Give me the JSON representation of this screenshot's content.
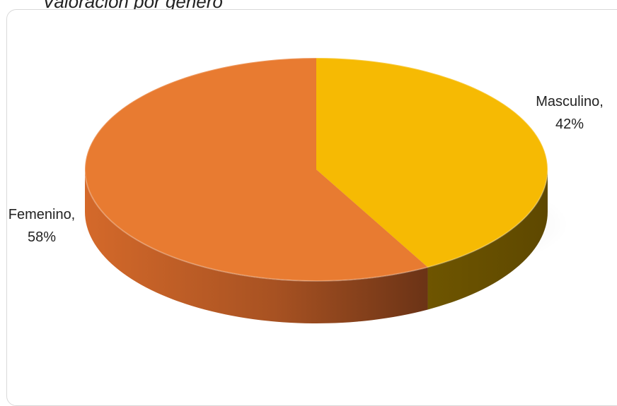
{
  "chart_data": {
    "type": "pie",
    "title": "Valoración por género",
    "slices": [
      {
        "category": "Masculino",
        "value": 42,
        "label_name": "Masculino,",
        "label_pct": "42%",
        "color": "#F6BA03",
        "side_color": "#6A5200"
      },
      {
        "category": "Femenino",
        "value": 58,
        "label_name": "Femenino,",
        "label_pct": "58%",
        "color": "#E87B31",
        "side_color": "#7A3A14"
      }
    ],
    "style": "3d"
  }
}
